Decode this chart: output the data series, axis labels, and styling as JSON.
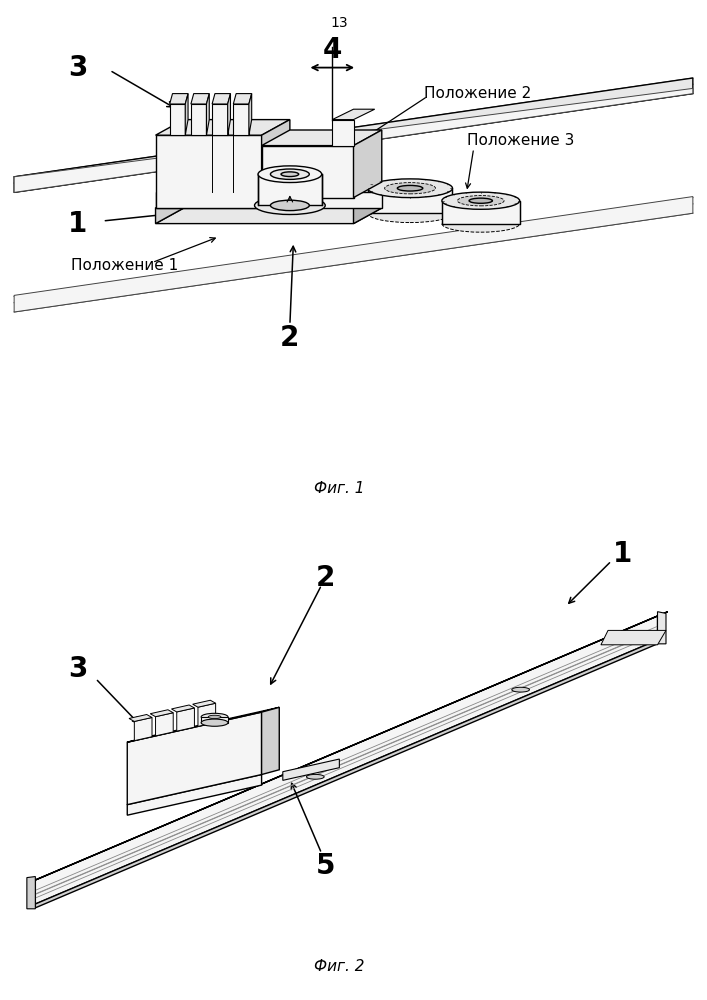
{
  "page_number": "13",
  "fig1_caption": "Фиг. 1",
  "fig2_caption": "Фиг. 2",
  "background_color": "#ffffff",
  "line_color": "#000000",
  "fill_light": "#f5f5f5",
  "fill_mid": "#e8e8e8",
  "fill_dark": "#d0d0d0",
  "fill_darker": "#b8b8b8",
  "label_fontsize_large": 20,
  "label_fontsize_small": 11,
  "caption_fontsize": 11
}
